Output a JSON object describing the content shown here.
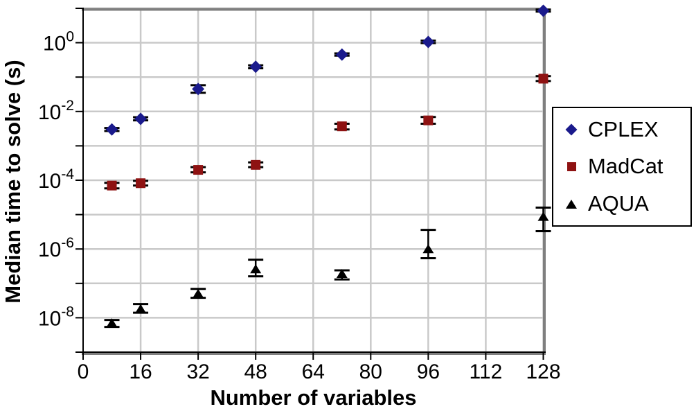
{
  "chart_data": {
    "type": "scatter",
    "title": "",
    "xlabel": "Number of variables",
    "ylabel": "Median time to solve (s)",
    "grid": true,
    "x_axis": {
      "min": 0,
      "max": 128,
      "ticks": [
        0,
        16,
        32,
        48,
        64,
        80,
        96,
        112,
        128
      ]
    },
    "y_axis": {
      "scale": "log",
      "min": 1e-09,
      "max": 10,
      "labeled_exponents": [
        0,
        -2,
        -4,
        -6,
        -8
      ],
      "gridline_exponents": [
        1,
        0,
        -1,
        -2,
        -3,
        -4,
        -5,
        -6,
        -7,
        -8,
        -9
      ],
      "label_base": "10"
    },
    "legend": {
      "position": "right",
      "entries": [
        "CPLEX",
        "MadCat",
        "AQUA"
      ]
    },
    "colors": {
      "gridline": "#c9c9c9",
      "frame": "#7f7f7f",
      "axis": "#000000",
      "error_bar": "#000000",
      "background": "#ffffff",
      "cplex": "#1a1a8c",
      "madcat": "#8e1212",
      "aqua": "#000000"
    },
    "series": [
      {
        "name": "CPLEX",
        "marker": "diamond",
        "color": "#1a1a8c",
        "points": [
          {
            "x": 8,
            "y": 0.003,
            "lo": 0.0027,
            "hi": 0.0033
          },
          {
            "x": 16,
            "y": 0.0061,
            "lo": 0.0055,
            "hi": 0.0068
          },
          {
            "x": 32,
            "y": 0.045,
            "lo": 0.035,
            "hi": 0.058
          },
          {
            "x": 48,
            "y": 0.2,
            "lo": 0.18,
            "hi": 0.22
          },
          {
            "x": 72,
            "y": 0.45,
            "lo": 0.42,
            "hi": 0.49
          },
          {
            "x": 96,
            "y": 1.05,
            "lo": 0.97,
            "hi": 1.15
          },
          {
            "x": 128,
            "y": 8.5,
            "lo": 8.0,
            "hi": 9.2
          }
        ]
      },
      {
        "name": "MadCat",
        "marker": "square",
        "color": "#8e1212",
        "points": [
          {
            "x": 8,
            "y": 7e-05,
            "lo": 5.8e-05,
            "hi": 8.4e-05
          },
          {
            "x": 16,
            "y": 8.2e-05,
            "lo": 7e-05,
            "hi": 9.6e-05
          },
          {
            "x": 32,
            "y": 0.0002,
            "lo": 0.00017,
            "hi": 0.00024
          },
          {
            "x": 48,
            "y": 0.00028,
            "lo": 0.00024,
            "hi": 0.00033
          },
          {
            "x": 72,
            "y": 0.0037,
            "lo": 0.003,
            "hi": 0.0044
          },
          {
            "x": 96,
            "y": 0.0055,
            "lo": 0.0044,
            "hi": 0.0069
          },
          {
            "x": 128,
            "y": 0.09,
            "lo": 0.077,
            "hi": 0.107
          }
        ]
      },
      {
        "name": "AQUA",
        "marker": "triangle",
        "color": "#000000",
        "points": [
          {
            "x": 8,
            "y": 7e-09,
            "lo": 5.4e-09,
            "hi": 8.6e-09
          },
          {
            "x": 16,
            "y": 1.8e-08,
            "lo": 1.4e-08,
            "hi": 2.5e-08
          },
          {
            "x": 32,
            "y": 5e-08,
            "lo": 3.8e-08,
            "hi": 6.9e-08
          },
          {
            "x": 48,
            "y": 2.6e-07,
            "lo": 1.6e-07,
            "hi": 4.9e-07
          },
          {
            "x": 72,
            "y": 1.9e-07,
            "lo": 1.3e-07,
            "hi": 2.4e-07
          },
          {
            "x": 96,
            "y": 1e-06,
            "lo": 5.4e-07,
            "hi": 3.6e-06
          },
          {
            "x": 128,
            "y": 8.7e-06,
            "lo": 3.3e-06,
            "hi": 1.6e-05
          }
        ]
      }
    ]
  }
}
